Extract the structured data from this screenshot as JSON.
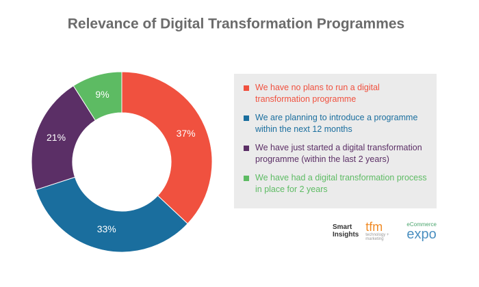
{
  "chart_data": {
    "type": "donut",
    "title": "Relevance of Digital Transformation Programmes",
    "categories": [
      "We have no plans to run a digital transformation programme",
      "We are planning to introduce a programme within the next 12 months",
      "We have just started a digital transformation programme (within the last 2 years)",
      "We have had a digital transformation process in place for 2 years"
    ],
    "values": [
      37,
      33,
      21,
      9
    ],
    "value_labels": [
      "37%",
      "33%",
      "21%",
      "9%"
    ],
    "colors": [
      "#f0513f",
      "#1a6e9e",
      "#5b2f66",
      "#5dbb63"
    ]
  },
  "logos": [
    "Smart Insights",
    "tfm",
    "technology + marketing",
    "eCommerce",
    "expo"
  ]
}
